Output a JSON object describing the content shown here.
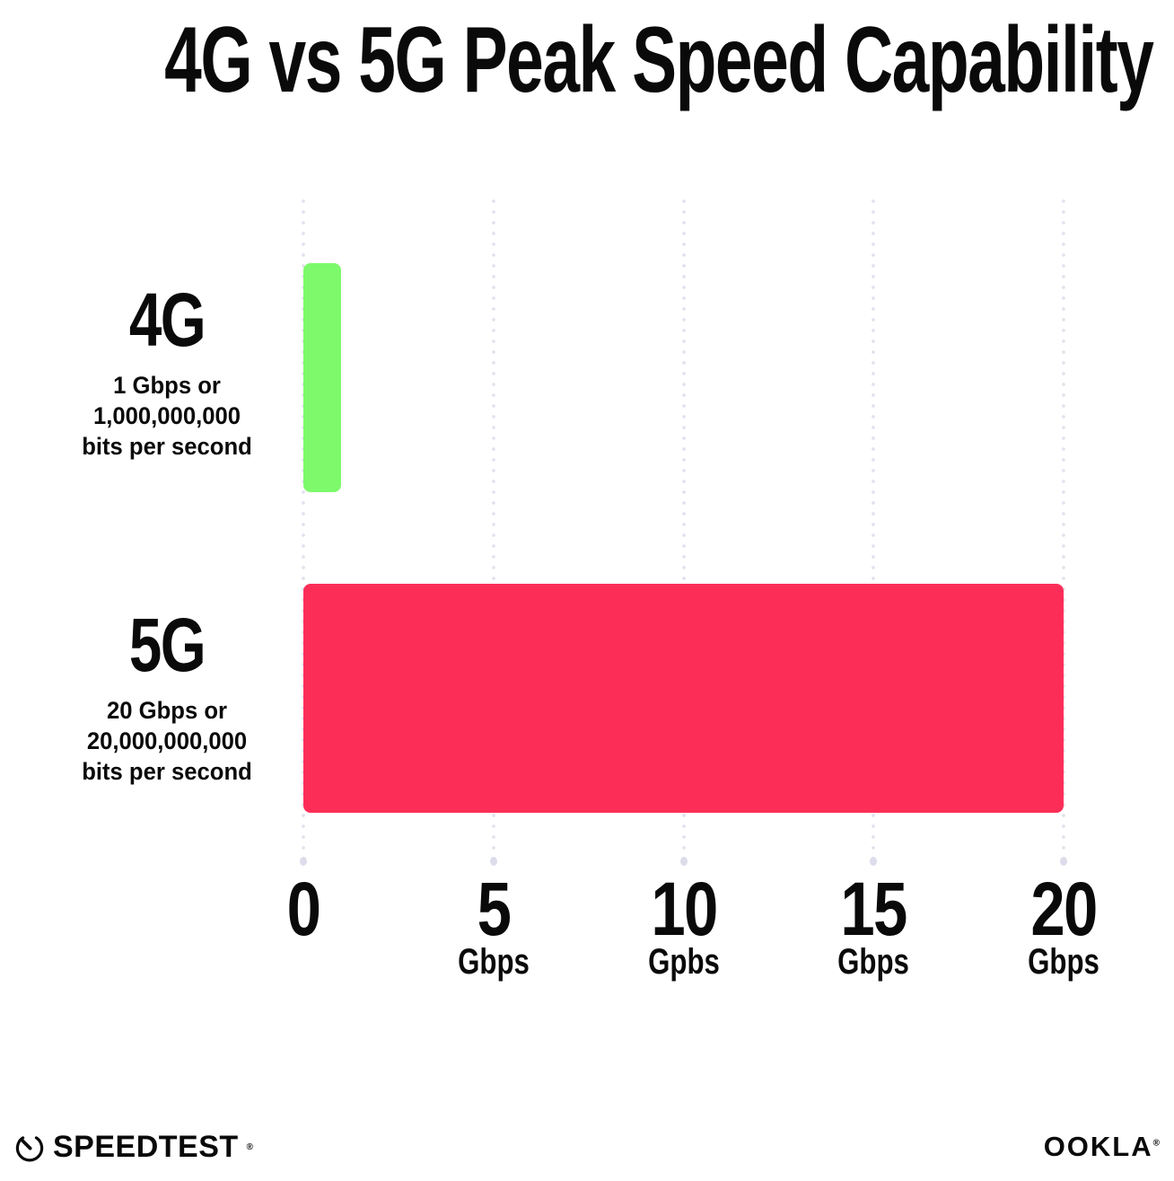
{
  "chart_data": {
    "type": "bar",
    "orientation": "horizontal",
    "title": "4G vs 5G Peak Speed Capability",
    "xlim": [
      0,
      20
    ],
    "grid": "vertical dotted gridlines at each tick, light lavender",
    "legend_position": "none",
    "x_ticks": [
      {
        "label": "0",
        "unit": ""
      },
      {
        "label": "5",
        "unit": "Gbps"
      },
      {
        "label": "10",
        "unit": "Gpbs"
      },
      {
        "label": "15",
        "unit": "Gbps"
      },
      {
        "label": "20",
        "unit": "Gbps"
      }
    ],
    "rows": [
      {
        "category": "4G",
        "value": 1,
        "color": "#7df96b",
        "desc_lines": [
          "1 Gbps or",
          "1,000,000,000",
          "bits per second"
        ]
      },
      {
        "category": "5G",
        "value": 20,
        "color": "#fc2e58",
        "desc_lines": [
          "20 Gbps or",
          "20,000,000,000",
          "bits per second"
        ]
      }
    ]
  },
  "footer": {
    "speedtest": {
      "label": "SPEEDTEST",
      "trademark": "®",
      "icon": "speedometer-gauge-icon"
    },
    "ookla": {
      "label": "OOKLA",
      "trademark": "®"
    }
  },
  "colors": {
    "background": "#ffffff",
    "text": "#0a0a0a",
    "bar_4g_green": "#7df96b",
    "bar_5g_pink": "#fc2e58",
    "gridline": "#e2e2ee"
  }
}
